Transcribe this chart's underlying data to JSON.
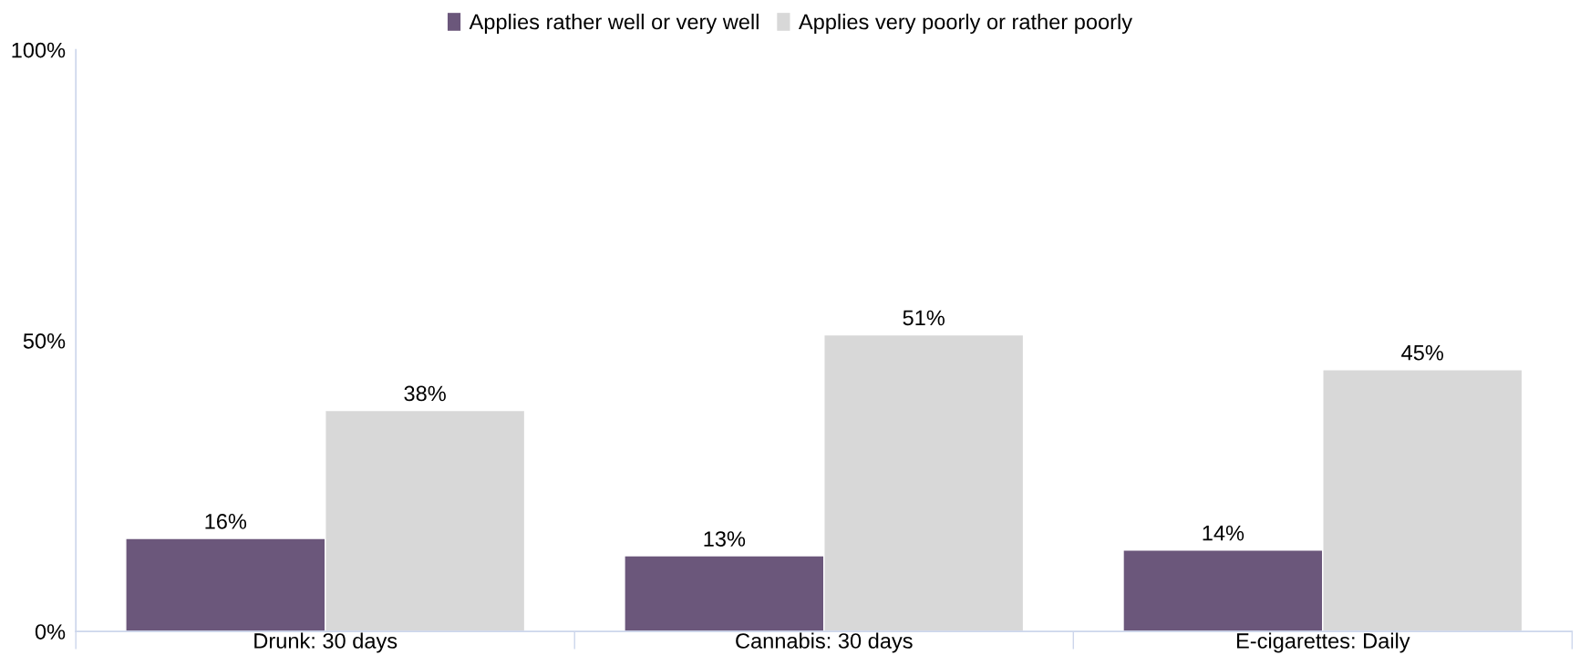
{
  "chart_data": {
    "type": "bar",
    "categories": [
      "Drunk: 30 days",
      "Cannabis: 30 days",
      "E-cigarettes: Daily"
    ],
    "series": [
      {
        "name": "Applies rather well or very well",
        "color": "#6b577b",
        "values": [
          16,
          13,
          14
        ]
      },
      {
        "name": "Applies very poorly or rather poorly",
        "color": "#d8d8d8",
        "values": [
          38,
          51,
          45
        ]
      }
    ],
    "ylim": [
      0,
      100
    ],
    "yticks": [
      {
        "value": 0,
        "label": "0%"
      },
      {
        "value": 50,
        "label": "50%"
      },
      {
        "value": 100,
        "label": "100%"
      }
    ],
    "value_labels": [
      [
        "16%",
        "13%",
        "14%"
      ],
      [
        "38%",
        "51%",
        "45%"
      ]
    ],
    "grid": false,
    "legend": "top"
  }
}
